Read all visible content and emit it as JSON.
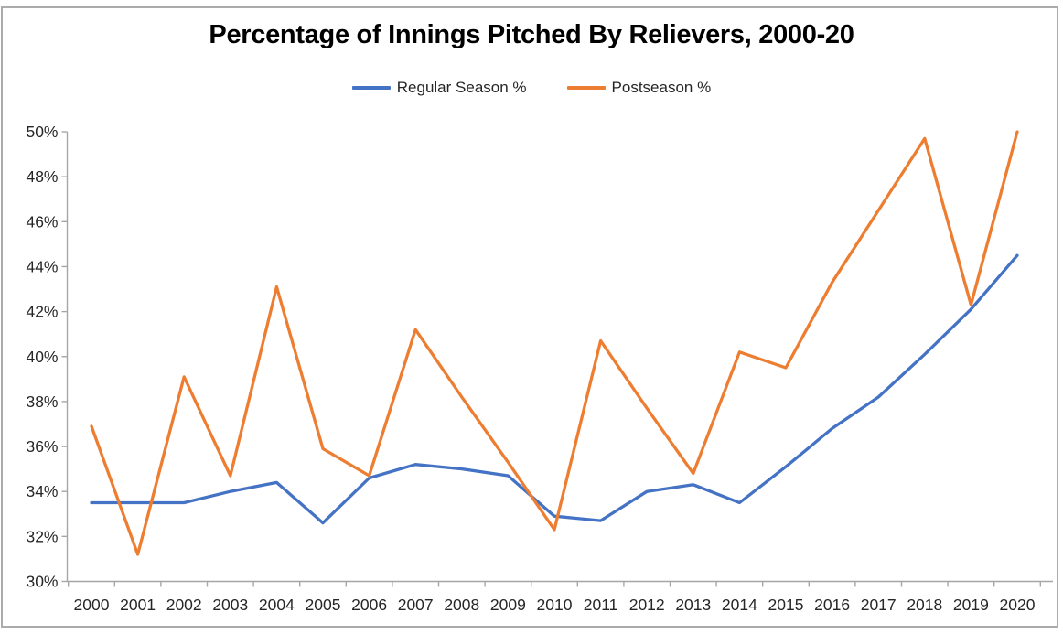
{
  "window": {
    "background": "#FFFFFF",
    "border_color": "#ABABAB"
  },
  "chart_data": {
    "type": "line",
    "title": "Percentage of Innings Pitched By Relievers, 2000-20",
    "xlabel": "",
    "ylabel": "",
    "x": [
      2000,
      2001,
      2002,
      2003,
      2004,
      2005,
      2006,
      2007,
      2008,
      2009,
      2010,
      2011,
      2012,
      2013,
      2014,
      2015,
      2016,
      2017,
      2018,
      2019,
      2020
    ],
    "series": [
      {
        "name": "Regular Season %",
        "color": "#4472C4",
        "values": [
          33.5,
          33.5,
          33.5,
          34.0,
          34.4,
          32.6,
          34.6,
          35.2,
          35.0,
          34.7,
          32.9,
          32.7,
          34.0,
          34.3,
          33.5,
          35.1,
          36.8,
          38.2,
          40.1,
          42.1,
          44.5
        ]
      },
      {
        "name": "Postseason %",
        "color": "#ED7D31",
        "values": [
          36.9,
          31.2,
          39.1,
          34.7,
          43.1,
          35.9,
          34.7,
          41.2,
          38.2,
          35.3,
          32.3,
          40.7,
          37.7,
          34.8,
          40.2,
          39.5,
          43.3,
          46.5,
          49.7,
          42.3,
          50.0
        ]
      }
    ],
    "ylim": [
      30,
      50
    ],
    "ytick_step": 2,
    "ytick_labels": [
      "30%",
      "32%",
      "34%",
      "36%",
      "38%",
      "40%",
      "42%",
      "44%",
      "46%",
      "48%",
      "50%"
    ],
    "xtick_labels": [
      "2000",
      "2001",
      "2002",
      "2003",
      "2004",
      "2005",
      "2006",
      "2007",
      "2008",
      "2009",
      "2010",
      "2011",
      "2012",
      "2013",
      "2014",
      "2015",
      "2016",
      "2017",
      "2018",
      "2019",
      "2020"
    ],
    "legend_position": "top",
    "grid": false,
    "marker": "none",
    "axis_color": "#A6A6A6",
    "label_color": "#262626"
  }
}
